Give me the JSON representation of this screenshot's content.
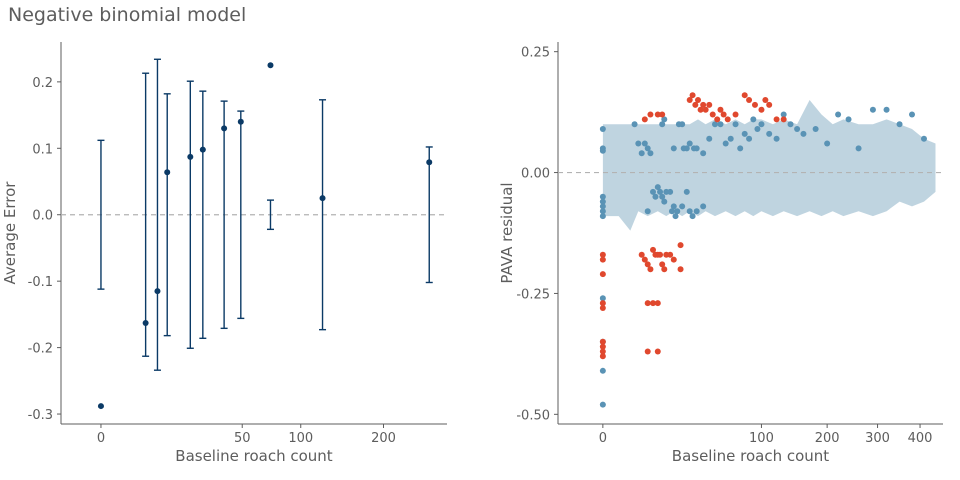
{
  "figure_title": "Negative binomial model",
  "colors": {
    "navy": "#0b3a66",
    "teal": "#5a93b5",
    "band": "#bfd4e0",
    "red": "#e0482e",
    "zero_line": "#b3b3b3",
    "axis": "#5d5d5d",
    "text": "#5d5d5d"
  },
  "chart_data": [
    {
      "type": "errorbar",
      "xlabel": "Baseline roach count",
      "ylabel": "Average Error",
      "x_scale": "sqrt",
      "xlim": [
        -4,
        300
      ],
      "ylim": [
        -0.315,
        0.26
      ],
      "x_ticks": [
        0,
        50,
        100,
        200
      ],
      "y_ticks": [
        -0.3,
        -0.2,
        -0.1,
        0.0,
        0.1,
        0.2
      ],
      "y_tick_labels": [
        "-0.3",
        "-0.2",
        "-0.1",
        "0.0",
        "0.1",
        "0.2"
      ],
      "reference_line": 0,
      "points": [
        {
          "x": 0,
          "y": -0.288,
          "lo": -0.112,
          "hi": 0.112
        },
        {
          "x": 5,
          "y": -0.163,
          "lo": -0.213,
          "hi": 0.213
        },
        {
          "x": 8,
          "y": -0.115,
          "lo": -0.234,
          "hi": 0.234
        },
        {
          "x": 11,
          "y": 0.064,
          "lo": -0.182,
          "hi": 0.182
        },
        {
          "x": 20,
          "y": 0.087,
          "lo": -0.201,
          "hi": 0.201
        },
        {
          "x": 26,
          "y": 0.098,
          "lo": -0.186,
          "hi": 0.186
        },
        {
          "x": 38,
          "y": 0.13,
          "lo": -0.171,
          "hi": 0.171
        },
        {
          "x": 49,
          "y": 0.14,
          "lo": -0.156,
          "hi": 0.156
        },
        {
          "x": 72,
          "y": 0.225,
          "lo": -0.022,
          "hi": 0.022
        },
        {
          "x": 123,
          "y": 0.025,
          "lo": -0.173,
          "hi": 0.173
        },
        {
          "x": 270,
          "y": 0.079,
          "lo": -0.102,
          "hi": 0.102
        }
      ]
    },
    {
      "type": "scatter",
      "xlabel": "Baseline roach count",
      "ylabel": "PAVA residual",
      "x_scale": "sqrt",
      "xlim": [
        -8,
        460
      ],
      "ylim": [
        -0.52,
        0.27
      ],
      "x_ticks": [
        0,
        100,
        200,
        300,
        400
      ],
      "y_ticks": [
        -0.5,
        -0.25,
        0.0,
        0.25
      ],
      "y_tick_labels": [
        "-0.50",
        "-0.25",
        "0.00",
        "0.25"
      ],
      "reference_line": 0,
      "band": {
        "x": [
          0,
          1,
          3,
          5,
          8,
          12,
          16,
          20,
          25,
          30,
          36,
          42,
          50,
          60,
          70,
          80,
          90,
          100,
          115,
          130,
          150,
          170,
          190,
          210,
          230,
          260,
          290,
          320,
          350,
          380,
          410,
          440
        ],
        "upper": [
          0.1,
          0.1,
          0.1,
          0.1,
          0.1,
          0.1,
          0.1,
          0.1,
          0.1,
          0.1,
          0.11,
          0.1,
          0.11,
          0.1,
          0.11,
          0.1,
          0.11,
          0.11,
          0.1,
          0.11,
          0.1,
          0.15,
          0.12,
          0.1,
          0.11,
          0.1,
          0.1,
          0.11,
          0.1,
          0.09,
          0.07,
          0.06
        ],
        "lower": [
          -0.09,
          -0.09,
          -0.12,
          -0.08,
          -0.09,
          -0.08,
          -0.09,
          -0.08,
          -0.09,
          -0.08,
          -0.09,
          -0.08,
          -0.09,
          -0.08,
          -0.09,
          -0.08,
          -0.09,
          -0.08,
          -0.09,
          -0.08,
          -0.09,
          -0.08,
          -0.09,
          -0.08,
          -0.09,
          -0.08,
          -0.09,
          -0.08,
          -0.06,
          -0.07,
          -0.06,
          -0.04
        ]
      },
      "series": [
        {
          "color_key": "teal",
          "points": [
            [
              0,
              0.09
            ],
            [
              0,
              0.05
            ],
            [
              0,
              0.045
            ],
            [
              0,
              -0.05
            ],
            [
              0,
              -0.06
            ],
            [
              0,
              -0.07
            ],
            [
              0,
              -0.08
            ],
            [
              0,
              -0.09
            ],
            [
              0,
              -0.26
            ],
            [
              0,
              -0.35
            ],
            [
              0,
              -0.41
            ],
            [
              0,
              -0.48
            ],
            [
              4,
              0.1
            ],
            [
              5,
              0.06
            ],
            [
              6,
              0.04
            ],
            [
              7,
              0.06
            ],
            [
              8,
              0.05
            ],
            [
              9,
              0.04
            ],
            [
              8,
              -0.08
            ],
            [
              10,
              -0.04
            ],
            [
              11,
              -0.05
            ],
            [
              12,
              -0.03
            ],
            [
              13,
              -0.04
            ],
            [
              14,
              -0.05
            ],
            [
              15,
              -0.06
            ],
            [
              16,
              -0.04
            ],
            [
              18,
              -0.04
            ],
            [
              19,
              -0.08
            ],
            [
              20,
              -0.07
            ],
            [
              21,
              -0.09
            ],
            [
              22,
              -0.08
            ],
            [
              14,
              0.1
            ],
            [
              15,
              0.11
            ],
            [
              20,
              0.05
            ],
            [
              23,
              0.1
            ],
            [
              25,
              0.1
            ],
            [
              26,
              0.05
            ],
            [
              28,
              0.05
            ],
            [
              30,
              0.06
            ],
            [
              33,
              0.05
            ],
            [
              35,
              0.05
            ],
            [
              40,
              0.04
            ],
            [
              45,
              0.07
            ],
            [
              50,
              0.1
            ],
            [
              55,
              0.1
            ],
            [
              60,
              0.06
            ],
            [
              65,
              0.07
            ],
            [
              70,
              0.1
            ],
            [
              75,
              0.05
            ],
            [
              80,
              0.08
            ],
            [
              85,
              0.07
            ],
            [
              90,
              0.11
            ],
            [
              95,
              0.09
            ],
            [
              100,
              0.1
            ],
            [
              110,
              0.08
            ],
            [
              120,
              0.07
            ],
            [
              130,
              0.12
            ],
            [
              140,
              0.1
            ],
            [
              150,
              0.09
            ],
            [
              160,
              0.08
            ],
            [
              180,
              0.09
            ],
            [
              200,
              0.06
            ],
            [
              220,
              0.12
            ],
            [
              240,
              0.11
            ],
            [
              260,
              0.05
            ],
            [
              290,
              0.13
            ],
            [
              320,
              0.13
            ],
            [
              350,
              0.1
            ],
            [
              380,
              0.12
            ],
            [
              410,
              0.07
            ],
            [
              25,
              -0.07
            ],
            [
              30,
              -0.08
            ],
            [
              35,
              -0.08
            ],
            [
              40,
              -0.07
            ],
            [
              28,
              -0.04
            ],
            [
              32,
              -0.09
            ]
          ]
        },
        {
          "color_key": "red",
          "points": [
            [
              0,
              -0.17
            ],
            [
              0,
              -0.18
            ],
            [
              0,
              -0.21
            ],
            [
              0,
              -0.27
            ],
            [
              0,
              -0.28
            ],
            [
              0,
              -0.35
            ],
            [
              0,
              -0.36
            ],
            [
              0,
              -0.37
            ],
            [
              0,
              -0.38
            ],
            [
              6,
              -0.17
            ],
            [
              7,
              -0.18
            ],
            [
              8,
              -0.19
            ],
            [
              9,
              -0.2
            ],
            [
              10,
              -0.16
            ],
            [
              11,
              -0.17
            ],
            [
              12,
              -0.17
            ],
            [
              13,
              -0.17
            ],
            [
              14,
              -0.19
            ],
            [
              15,
              -0.2
            ],
            [
              16,
              -0.17
            ],
            [
              18,
              -0.17
            ],
            [
              20,
              -0.18
            ],
            [
              24,
              -0.15
            ],
            [
              24,
              -0.2
            ],
            [
              8,
              -0.27
            ],
            [
              10,
              -0.27
            ],
            [
              12,
              -0.27
            ],
            [
              8,
              -0.37
            ],
            [
              12,
              -0.37
            ],
            [
              7,
              0.11
            ],
            [
              9,
              0.12
            ],
            [
              12,
              0.12
            ],
            [
              14,
              0.12
            ],
            [
              30,
              0.15
            ],
            [
              32,
              0.16
            ],
            [
              34,
              0.14
            ],
            [
              36,
              0.15
            ],
            [
              38,
              0.13
            ],
            [
              40,
              0.14
            ],
            [
              42,
              0.13
            ],
            [
              45,
              0.14
            ],
            [
              48,
              0.12
            ],
            [
              52,
              0.11
            ],
            [
              55,
              0.13
            ],
            [
              58,
              0.12
            ],
            [
              62,
              0.11
            ],
            [
              70,
              0.12
            ],
            [
              80,
              0.16
            ],
            [
              85,
              0.15
            ],
            [
              92,
              0.14
            ],
            [
              100,
              0.13
            ],
            [
              105,
              0.15
            ],
            [
              110,
              0.14
            ],
            [
              120,
              0.11
            ],
            [
              130,
              0.11
            ]
          ]
        }
      ]
    }
  ]
}
